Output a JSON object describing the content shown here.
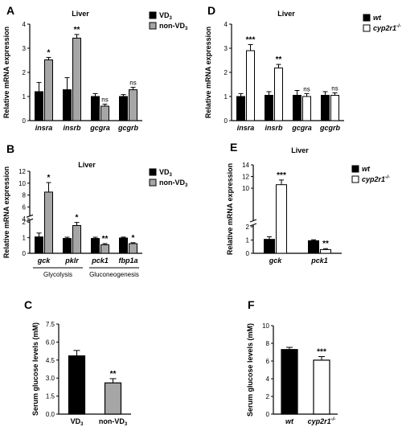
{
  "colors": {
    "vd3": "#000000",
    "non_vd3": "#a6a6a6",
    "wt": "#000000",
    "cyp": "#ffffff",
    "stroke": "#000000"
  },
  "chart_data": [
    {
      "panel": "A",
      "title": "Liver",
      "type": "bar",
      "ylabel": "Relative mRNA expression",
      "ylim": [
        0,
        4
      ],
      "yticks": [
        "0",
        "1",
        "2",
        "3",
        "4"
      ],
      "categories": [
        "insra",
        "insrb",
        "gcgra",
        "gcgrb"
      ],
      "series": [
        {
          "name": "VD3",
          "color": "#000000",
          "values": [
            1.2,
            1.28,
            1.0,
            1.0
          ],
          "errors": [
            0.38,
            0.5,
            0.12,
            0.08
          ]
        },
        {
          "name": "non-VD3",
          "color": "#a6a6a6",
          "values": [
            2.52,
            3.42,
            0.6,
            1.28
          ],
          "errors": [
            0.1,
            0.15,
            0.08,
            0.1
          ]
        }
      ],
      "significance": [
        "*",
        "**",
        "ns",
        "ns"
      ],
      "legend": [
        "VD3",
        "non-VD3"
      ]
    },
    {
      "panel": "B",
      "title": "Liver",
      "type": "bar",
      "ylabel": "Relative mRNA expression",
      "ylim": [
        0,
        12
      ],
      "axis_break": [
        2,
        4
      ],
      "yticks": [
        "0",
        "1",
        "2",
        "4",
        "6",
        "8",
        "10",
        "12"
      ],
      "categories": [
        "gck",
        "pklr",
        "pck1",
        "fbp1a"
      ],
      "groups": [
        {
          "label": "Glycolysis",
          "members": [
            "gck",
            "pklr"
          ]
        },
        {
          "label": "Gluconeogenesis",
          "members": [
            "pck1",
            "fbp1a"
          ]
        }
      ],
      "series": [
        {
          "name": "VD3",
          "color": "#000000",
          "values": [
            1.05,
            0.95,
            0.95,
            0.98
          ],
          "errors": [
            0.25,
            0.08,
            0.08,
            0.06
          ]
        },
        {
          "name": "non-VD3",
          "color": "#a6a6a6",
          "values": [
            8.5,
            1.78,
            0.55,
            0.62
          ],
          "errors": [
            1.6,
            0.2,
            0.07,
            0.06
          ]
        }
      ],
      "significance": [
        "*",
        "*",
        "**",
        "*"
      ],
      "legend": [
        "VD3",
        "non-VD3"
      ]
    },
    {
      "panel": "C",
      "type": "bar",
      "ylabel": "Serum glucose levels (mM)",
      "ylim": [
        0,
        7.5
      ],
      "yticks": [
        "0.0",
        "1.5",
        "3.0",
        "4.5",
        "6.0",
        "7.5"
      ],
      "categories": [
        "VD3",
        "non-VD3"
      ],
      "values": [
        4.85,
        2.6
      ],
      "errors": [
        0.45,
        0.35
      ],
      "colors": [
        "#000000",
        "#a6a6a6"
      ],
      "significance": [
        "",
        "**"
      ]
    },
    {
      "panel": "D",
      "title": "Liver",
      "type": "bar",
      "ylabel": "Relative mRNA expression",
      "ylim": [
        0,
        4
      ],
      "yticks": [
        "0",
        "1",
        "2",
        "3",
        "4"
      ],
      "categories": [
        "insra",
        "insrb",
        "gcgra",
        "gcgrb"
      ],
      "series": [
        {
          "name": "wt",
          "color": "#000000",
          "values": [
            1.0,
            1.05,
            1.05,
            1.05
          ],
          "errors": [
            0.12,
            0.15,
            0.2,
            0.15
          ]
        },
        {
          "name": "cyp2r1-/-",
          "color": "#ffffff",
          "values": [
            2.9,
            2.18,
            1.0,
            1.05
          ],
          "errors": [
            0.25,
            0.15,
            0.12,
            0.1
          ]
        }
      ],
      "significance": [
        "***",
        "**",
        "ns",
        "ns"
      ],
      "legend": [
        "wt",
        "cyp2r1-/-"
      ]
    },
    {
      "panel": "E",
      "title": "Liver",
      "type": "bar",
      "ylabel": "Relative mRNA expression",
      "ylim": [
        0,
        14
      ],
      "axis_break": [
        2,
        4
      ],
      "yticks": [
        "0",
        "1",
        "2",
        "10",
        "12",
        "14"
      ],
      "categories": [
        "gck",
        "pck1"
      ],
      "series": [
        {
          "name": "wt",
          "color": "#000000",
          "values": [
            1.05,
            0.95
          ],
          "errors": [
            0.2,
            0.07
          ]
        },
        {
          "name": "cyp2r1-/-",
          "color": "#ffffff",
          "values": [
            10.6,
            0.28
          ],
          "errors": [
            0.8,
            0.07
          ]
        }
      ],
      "significance": [
        "***",
        "**"
      ],
      "legend": [
        "wt",
        "cyp2r1-/-"
      ]
    },
    {
      "panel": "F",
      "type": "bar",
      "ylabel": "Serum glucose levels (mM)",
      "ylim": [
        0,
        10
      ],
      "yticks": [
        "0",
        "2",
        "4",
        "6",
        "8",
        "10"
      ],
      "categories": [
        "wt",
        "cyp2r1-/-"
      ],
      "values": [
        7.3,
        6.1
      ],
      "errors": [
        0.25,
        0.4
      ],
      "colors": [
        "#000000",
        "#ffffff"
      ],
      "significance": [
        "",
        "***"
      ]
    }
  ]
}
